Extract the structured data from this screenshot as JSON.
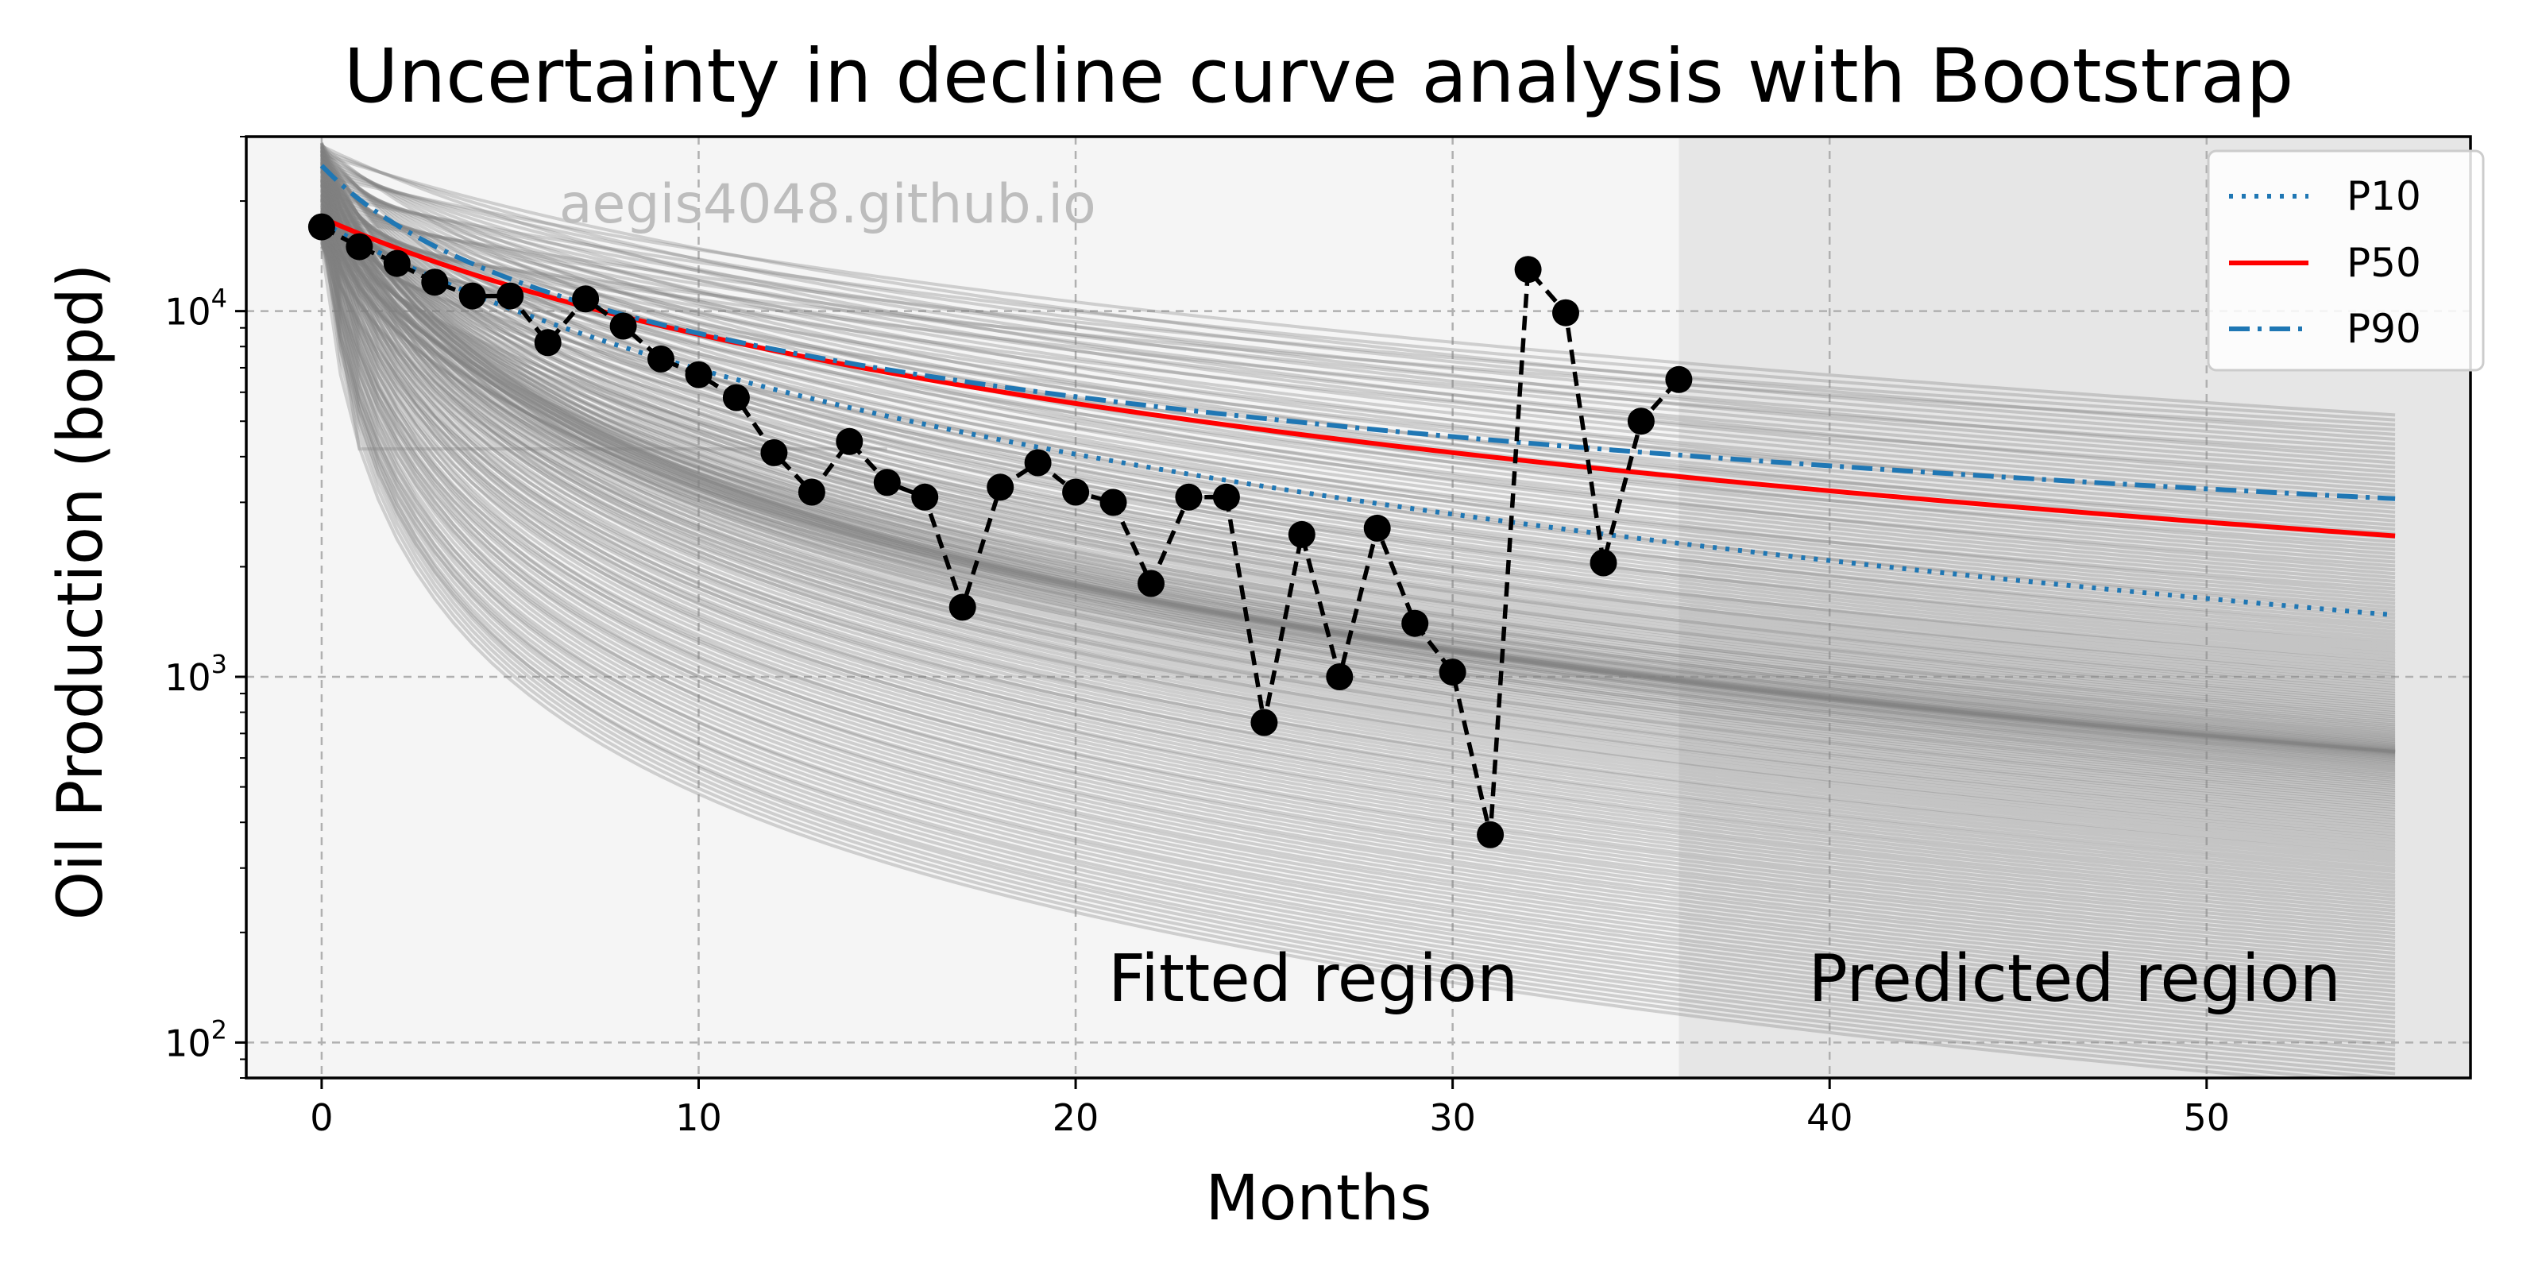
{
  "chart_data": {
    "type": "line",
    "title": "Uncertainty in decline curve analysis with Bootstrap",
    "xlabel": "Months",
    "ylabel": "Oil Production (bopd)",
    "xlim": [
      -2,
      57
    ],
    "ylim": [
      80,
      30000
    ],
    "yscale": "log",
    "x_ticks": [
      0,
      10,
      20,
      30,
      40,
      50
    ],
    "y_ticks": [
      {
        "value": 100,
        "base": "10",
        "exp": "2"
      },
      {
        "value": 1000,
        "base": "10",
        "exp": "3"
      },
      {
        "value": 10000,
        "base": "10",
        "exp": "4"
      }
    ],
    "grid": true,
    "watermark": "aegis4048.github.io",
    "regions": [
      {
        "label": "Fitted region",
        "x_range": [
          -2,
          36
        ],
        "color": "#f5f5f5"
      },
      {
        "label": "Predicted region",
        "x_range": [
          36,
          57
        ],
        "color": "#e6e6e6"
      }
    ],
    "observed": {
      "x": [
        0,
        1,
        2,
        3,
        4,
        5,
        6,
        7,
        8,
        9,
        10,
        11,
        12,
        13,
        14,
        15,
        16,
        17,
        18,
        19,
        20,
        21,
        22,
        23,
        24,
        25,
        26,
        27,
        28,
        29,
        30,
        31,
        32,
        33,
        34,
        35,
        36
      ],
      "y": [
        17000,
        15000,
        13500,
        12000,
        11000,
        11000,
        8200,
        10800,
        9100,
        7400,
        6700,
        5800,
        4100,
        3200,
        4400,
        3400,
        3100,
        1550,
        3300,
        3850,
        3200,
        3000,
        1800,
        3100,
        3100,
        750,
        2450,
        1000,
        2550,
        1400,
        1030,
        370,
        13000,
        9900,
        2050,
        5000,
        6500
      ]
    },
    "series": [
      {
        "name": "P10",
        "qi": 17500,
        "D": 0.135,
        "b": 0.77,
        "color": "#1f77b4",
        "style": "dotted"
      },
      {
        "name": "P50",
        "qi": 18000,
        "D": 0.105,
        "b": 0.92,
        "color": "#ff0000",
        "style": "solid"
      },
      {
        "name": "P90",
        "qi": 25000,
        "D": 0.25,
        "b": 1.45,
        "color": "#1f77b4",
        "style": "dashdot"
      }
    ],
    "bootstrap_band": {
      "x_range": [
        0,
        55
      ],
      "samples": 220,
      "color": "#808080",
      "lower_end_value": 75,
      "upper_end_value": 5200
    },
    "outlier_curve": {
      "x": [
        0,
        1,
        15
      ],
      "y": [
        17000,
        4200,
        4200
      ]
    },
    "legend": {
      "position": "top-right",
      "entries": [
        {
          "label": "P10",
          "style": "dotted",
          "color": "#1f77b4"
        },
        {
          "label": "P50",
          "style": "solid",
          "color": "#ff0000"
        },
        {
          "label": "P90",
          "style": "dashdot",
          "color": "#1f77b4"
        }
      ]
    }
  }
}
